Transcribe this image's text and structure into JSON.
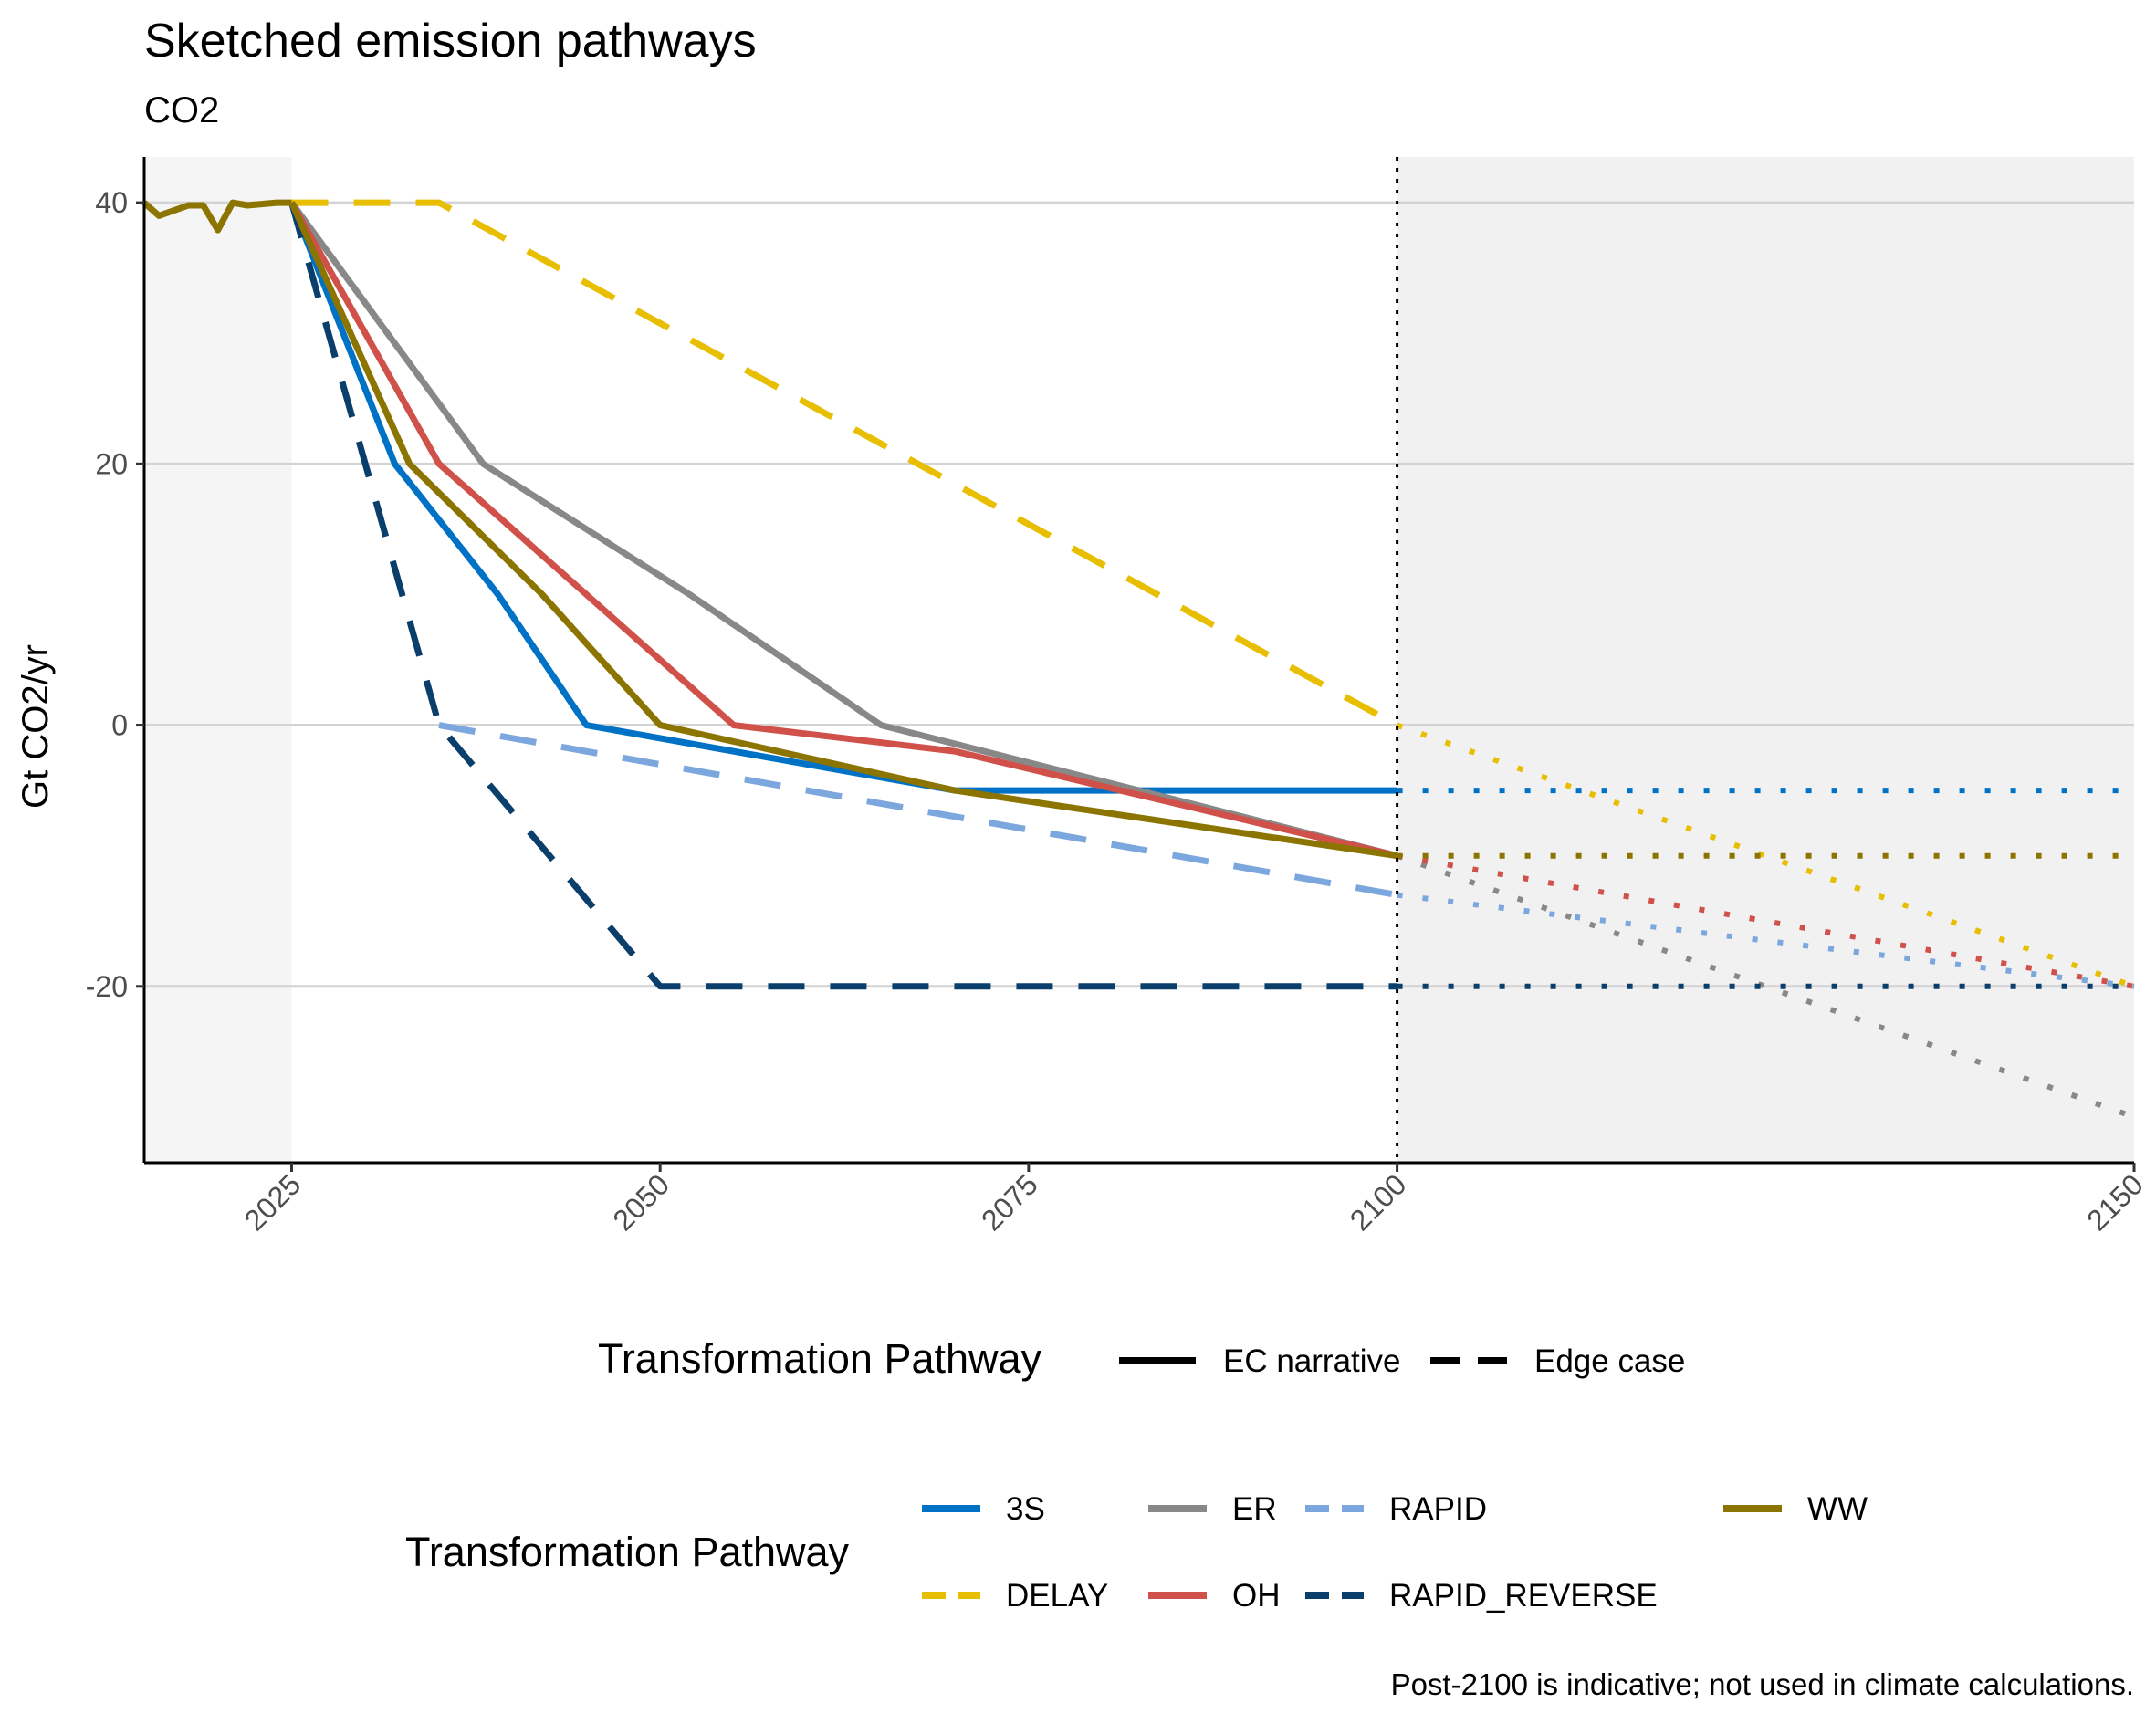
{
  "chart_data": {
    "type": "line",
    "title": "Sketched emission pathways",
    "subtitle": "CO2",
    "xlabel": "",
    "ylabel": "Gt CO2/yr",
    "xlim": [
      2015,
      2150
    ],
    "ylim": [
      -33.5,
      43.5
    ],
    "x_ticks": [
      2025,
      2050,
      2075,
      2100,
      2150
    ],
    "y_ticks": [
      -20,
      0,
      20,
      40
    ],
    "grid": true,
    "historical_shade_end": 2025,
    "indicative_from": 2100,
    "history": {
      "color": "#8B7400",
      "points": [
        [
          2015,
          40
        ],
        [
          2016,
          39
        ],
        [
          2018,
          39.8
        ],
        [
          2019,
          39.8
        ],
        [
          2020,
          37.9
        ],
        [
          2021,
          40
        ],
        [
          2022,
          39.8
        ],
        [
          2024,
          40
        ],
        [
          2025,
          40
        ]
      ]
    },
    "series": [
      {
        "name": "3S",
        "color": "#0072C6",
        "style": "EC narrative",
        "points": [
          [
            2025,
            40
          ],
          [
            2032,
            20
          ],
          [
            2039,
            10
          ],
          [
            2045,
            0
          ],
          [
            2070,
            -5
          ],
          [
            2100,
            -5
          ]
        ],
        "extension": [
          [
            2100,
            -5
          ],
          [
            2150,
            -5
          ]
        ]
      },
      {
        "name": "DELAY",
        "color": "#E8BE00",
        "style": "Edge case",
        "points": [
          [
            2025,
            40
          ],
          [
            2035,
            40
          ],
          [
            2100,
            0
          ]
        ],
        "extension": [
          [
            2100,
            0
          ],
          [
            2150,
            -20
          ]
        ]
      },
      {
        "name": "ER",
        "color": "#888888",
        "style": "EC narrative",
        "points": [
          [
            2025,
            40
          ],
          [
            2038,
            20
          ],
          [
            2052,
            10
          ],
          [
            2065,
            0
          ],
          [
            2100,
            -10
          ]
        ],
        "extension": [
          [
            2100,
            -10
          ],
          [
            2150,
            -30
          ]
        ]
      },
      {
        "name": "OH",
        "color": "#D0504A",
        "style": "EC narrative",
        "points": [
          [
            2025,
            40
          ],
          [
            2035,
            20
          ],
          [
            2055,
            0
          ],
          [
            2070,
            -2
          ],
          [
            2100,
            -10
          ]
        ],
        "extension": [
          [
            2100,
            -10
          ],
          [
            2150,
            -20
          ]
        ]
      },
      {
        "name": "RAPID",
        "color": "#7BA7DE",
        "style": "Edge case",
        "points": [
          [
            2035,
            0
          ],
          [
            2100,
            -13
          ]
        ],
        "extension": [
          [
            2100,
            -13
          ],
          [
            2150,
            -20
          ]
        ]
      },
      {
        "name": "RAPID_REVERSE",
        "color": "#0A3E6B",
        "style": "Edge case",
        "points": [
          [
            2025,
            40
          ],
          [
            2035,
            0
          ],
          [
            2050,
            -20
          ],
          [
            2100,
            -20
          ]
        ],
        "extension": [
          [
            2100,
            -20
          ],
          [
            2150,
            -20
          ]
        ]
      },
      {
        "name": "WW",
        "color": "#8B7400",
        "style": "EC narrative",
        "points": [
          [
            2025,
            40
          ],
          [
            2033,
            20
          ],
          [
            2042,
            10
          ],
          [
            2050,
            0
          ],
          [
            2070,
            -5
          ],
          [
            2100,
            -10
          ]
        ],
        "extension": [
          [
            2100,
            -10
          ],
          [
            2150,
            -10
          ]
        ]
      }
    ],
    "legend": {
      "placement": "bottom",
      "linetype_title": "Transformation Pathway",
      "linetype_items": [
        "EC narrative",
        "Edge case"
      ],
      "color_title": "Transformation Pathway",
      "color_items": [
        "3S",
        "DELAY",
        "ER",
        "OH",
        "RAPID",
        "RAPID_REVERSE",
        "WW"
      ]
    },
    "caption": "Post-2100 is indicative; not used in climate calculations."
  }
}
